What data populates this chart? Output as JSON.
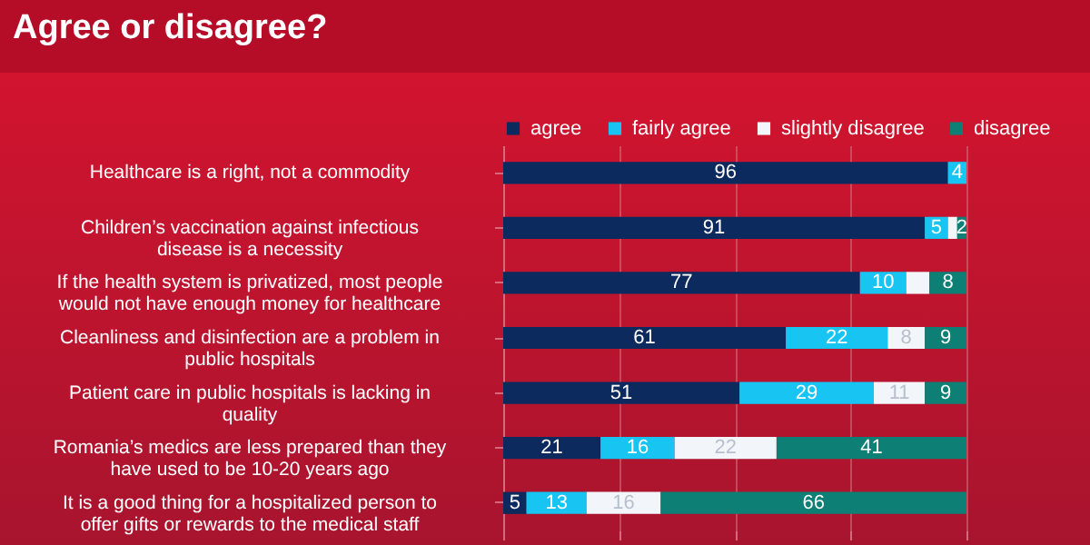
{
  "chart_data": {
    "type": "bar",
    "orientation": "horizontal",
    "stacked": true,
    "title": "Agree or disagree?",
    "categories": [
      "Healthcare is a right, not a commodity",
      "Children’s vaccination against infectious disease is a necessity",
      "If the health system is privatized, most people would not have enough money for healthcare",
      "Cleanliness and disinfection are a problem in public hospitals",
      "Patient care in public hospitals is lacking in quality",
      "Romania’s medics are less prepared than they have used to be 10-20 years ago",
      "It is a good thing for a hospitalized person to offer gifts or rewards to the medical staff"
    ],
    "series": [
      {
        "name": "agree",
        "color": "#0d2a5e",
        "values": [
          96,
          91,
          77,
          61,
          51,
          21,
          5
        ],
        "value_labels": [
          "96",
          "91",
          "77",
          "61",
          "51",
          "21",
          "5"
        ]
      },
      {
        "name": "fairly agree",
        "color": "#18c4f2",
        "values": [
          4,
          5,
          10,
          22,
          29,
          16,
          13
        ],
        "value_labels": [
          "4",
          "5",
          "10",
          "22",
          "29",
          "16",
          "13"
        ]
      },
      {
        "name": "slightly disagree",
        "color": "#f2f6fa",
        "values": [
          0,
          2,
          5,
          8,
          11,
          22,
          16
        ],
        "value_labels": [
          null,
          null,
          null,
          "8",
          "11",
          "22",
          "16"
        ]
      },
      {
        "name": "disagree",
        "color": "#0e7f74",
        "values": [
          0,
          2,
          8,
          9,
          9,
          41,
          66
        ],
        "value_labels": [
          null,
          "2",
          "8",
          "9",
          "9",
          "41",
          "66"
        ]
      }
    ],
    "xlim": [
      0,
      100
    ],
    "xticks": [
      {
        "value": 0,
        "label": null
      },
      {
        "value": 25,
        "label": null
      },
      {
        "value": 50,
        "label": null
      },
      {
        "value": 75,
        "label": null
      },
      {
        "value": 100,
        "label": null
      }
    ],
    "grid": "x",
    "legend": "top",
    "tick_labels": "y"
  }
}
